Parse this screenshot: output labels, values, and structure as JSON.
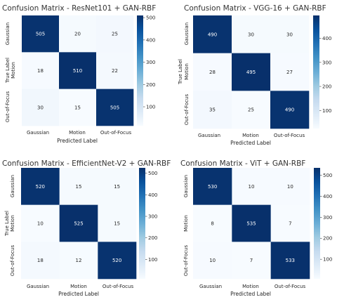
{
  "chart_data": [
    {
      "type": "heatmap",
      "title": "Confusion Matrix - ResNet101 + GAN-RBF",
      "xlabel": "Predicted Label",
      "ylabel": "True Label",
      "categories": [
        "Gaussian",
        "Motion",
        "Out-of-Focus"
      ],
      "values": [
        [
          505,
          20,
          25
        ],
        [
          18,
          510,
          22
        ],
        [
          30,
          15,
          505
        ]
      ],
      "colorbar": {
        "ticks": [
          100,
          200,
          300,
          400,
          500
        ],
        "range": [
          15,
          510
        ]
      }
    },
    {
      "type": "heatmap",
      "title": "Confusion Matrix - VGG-16 + GAN-RBF",
      "xlabel": "Predicted Label",
      "ylabel": "True Label",
      "categories": [
        "Gaussian",
        "Motion",
        "Out-of-Focus"
      ],
      "values": [
        [
          490,
          30,
          30
        ],
        [
          28,
          495,
          27
        ],
        [
          35,
          25,
          490
        ]
      ],
      "colorbar": {
        "ticks": [
          100,
          200,
          300,
          400
        ],
        "range": [
          25,
          495
        ]
      }
    },
    {
      "type": "heatmap",
      "title": "Confusion Matrix - EfficientNet-V2 + GAN-RBF",
      "xlabel": "Predicted Label",
      "ylabel": "True Label",
      "categories": [
        "Gaussian",
        "Motion",
        "Out-of-Focus"
      ],
      "values": [
        [
          520,
          15,
          15
        ],
        [
          10,
          525,
          15
        ],
        [
          18,
          12,
          520
        ]
      ],
      "colorbar": {
        "ticks": [
          100,
          200,
          300,
          400,
          500
        ],
        "range": [
          10,
          525
        ]
      }
    },
    {
      "type": "heatmap",
      "title": "Confusion Matrix - ViT + GAN-RBF",
      "xlabel": "Predicted Label",
      "ylabel": "True Label",
      "categories": [
        "Gaussian",
        "Motion",
        "Out-of-Focus"
      ],
      "values": [
        [
          530,
          10,
          10
        ],
        [
          8,
          535,
          7
        ],
        [
          10,
          7,
          533
        ]
      ],
      "colorbar": {
        "ticks": [
          100,
          200,
          300,
          400,
          500
        ],
        "range": [
          7,
          535
        ]
      }
    }
  ],
  "colors": {
    "low": "#f7fbff",
    "high": "#08306b",
    "text_dark": "#262626",
    "text_light": "#ffffff"
  }
}
